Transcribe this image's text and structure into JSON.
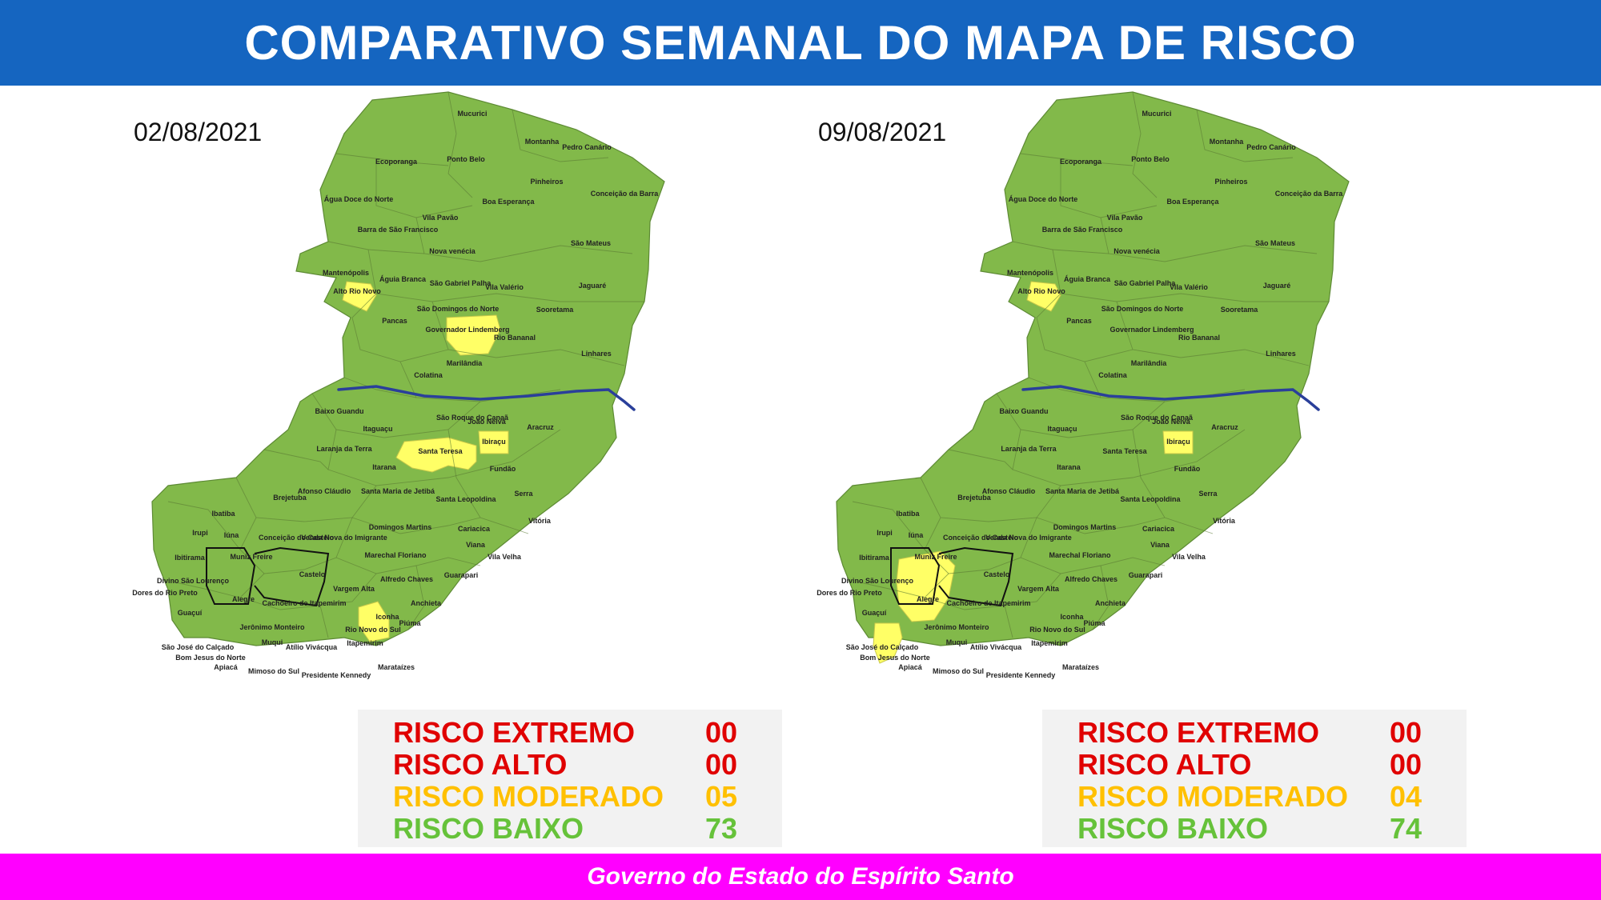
{
  "title": "COMPARATIVO SEMANAL DO MAPA DE RISCO",
  "footer": "Governo do Estado do Espírito Santo",
  "colors": {
    "header_bg": "#1565c0",
    "footer_bg": "#ff00ff",
    "map_green": "#82b94a",
    "moderate_yellow": "#ffff66",
    "river_blue": "#2a3f9a",
    "extreme": "#e00000",
    "high": "#e00000",
    "moderate": "#ffc000",
    "low": "#66c23a"
  },
  "municipalities": [
    "Mucurici",
    "Montanha",
    "Pedro Canário",
    "Ecoporanga",
    "Ponto Belo",
    "Pinheiros",
    "Conceição da Barra",
    "Água Doce do Norte",
    "Boa Esperança",
    "Barra de São Francisco",
    "Vila Pavão",
    "São Mateus",
    "Nova venécia",
    "Mantenópolis",
    "Águia Branca",
    "São Gabriel Palha",
    "Vila Valério",
    "Jaguaré",
    "Alto Rio Novo",
    "Sooretama",
    "São Domingos do Norte",
    "Pancas",
    "Governador Lindemberg",
    "Rio Bananal",
    "Marilândia",
    "Linhares",
    "Colatina",
    "Baixo Guandu",
    "São Roque do Canaã",
    "João Neiva",
    "Itaguaçu",
    "Aracruz",
    "Laranja da Terra",
    "Santa Teresa",
    "Ibiraçu",
    "Itarana",
    "Fundão",
    "Afonso Cláudio",
    "Santa Maria de Jetibá",
    "Brejetuba",
    "Santa Leopoldina",
    "Serra",
    "Ibatiba",
    "Vitória",
    "Domingos Martins",
    "Irupi",
    "Iúna",
    "Conceição do Castelo",
    "Venda Nova do Imigrante",
    "Cariacica",
    "Viana",
    "Ibitirama",
    "Muniz Freire",
    "Marechal Floriano",
    "Vila Velha",
    "Divino São Lourenço",
    "Castelo",
    "Alfredo Chaves",
    "Dores do Rio Preto",
    "Guarapari",
    "Vargem Alta",
    "Alegre",
    "Cachoeiro de Itapemirim",
    "Guaçuí",
    "Anchieta",
    "Iconha",
    "Jerônimo Monteiro",
    "Piúma",
    "Rio Novo do Sul",
    "São José do Calçado",
    "Muqui",
    "Atílio Vivácqua",
    "Itapemirim",
    "Bom Jesus do Norte",
    "Apiacá",
    "Mimoso do Sul",
    "Presidente Kennedy",
    "Marataízes"
  ],
  "panels": [
    {
      "date": "02/08/2021",
      "moderate": [
        "Alto Rio Novo",
        "Governador Lindemberg",
        "Santa Teresa",
        "Ibiraçu",
        "Rio Novo do Sul"
      ],
      "legend": [
        {
          "label": "RISCO EXTREMO",
          "value": "00",
          "color": "#e00000"
        },
        {
          "label": "RISCO ALTO",
          "value": "00",
          "color": "#e00000"
        },
        {
          "label": "RISCO MODERADO",
          "value": "05",
          "color": "#ffc000"
        },
        {
          "label": "RISCO BAIXO",
          "value": "73",
          "color": "#66c23a"
        }
      ]
    },
    {
      "date": "09/08/2021",
      "moderate": [
        "Alto Rio Novo",
        "Ibiraçu",
        "Alegre",
        "São José do Calçado"
      ],
      "legend": [
        {
          "label": "RISCO EXTREMO",
          "value": "00",
          "color": "#e00000"
        },
        {
          "label": "RISCO ALTO",
          "value": "00",
          "color": "#e00000"
        },
        {
          "label": "RISCO MODERADO",
          "value": "04",
          "color": "#ffc000"
        },
        {
          "label": "RISCO BAIXO",
          "value": "74",
          "color": "#66c23a"
        }
      ]
    }
  ]
}
